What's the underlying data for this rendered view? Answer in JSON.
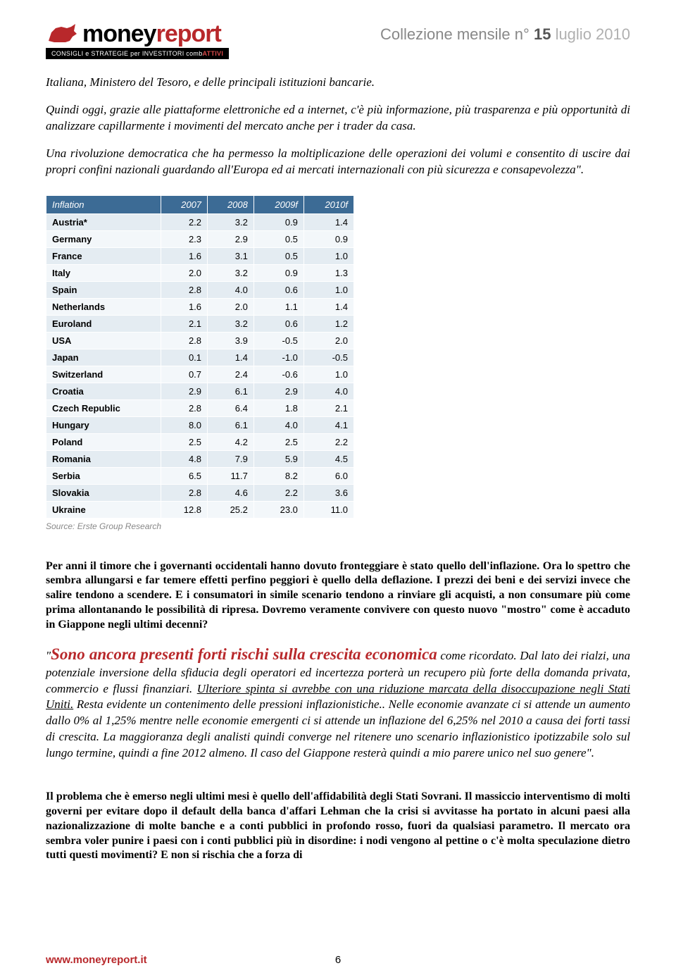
{
  "header": {
    "logo_text_1": "money",
    "logo_text_2": "report",
    "tagline_pre": "CONSIGLI e STRATEGIE per INVESTITORI comb",
    "tagline_red": "ATTIVI",
    "collezione_label": "Collezione mensile",
    "collezione_n": "n°",
    "collezione_num": "15",
    "collezione_month": "luglio 2010",
    "logo_color": "#b8282b"
  },
  "para1": "Italiana, Ministero del Tesoro, e delle principali istituzioni bancarie.",
  "para2": "Quindi oggi, grazie alle piattaforme elettroniche ed a internet, c'è più informazione, più trasparenza e più opportunità di analizzare capillarmente i movimenti del mercato anche per i trader da casa.",
  "para3": "Una rivoluzione democratica che ha permesso la moltiplicazione delle operazioni dei volumi e consentito di uscire dai propri confini nazionali guardando all'Europa ed ai mercati internazionali con più sicurezza e consapevolezza\".",
  "table": {
    "type": "table",
    "columns": [
      "Inflation",
      "2007",
      "2008",
      "2009f",
      "2010f"
    ],
    "rows": [
      [
        "Austria*",
        "2.2",
        "3.2",
        "0.9",
        "1.4"
      ],
      [
        "Germany",
        "2.3",
        "2.9",
        "0.5",
        "0.9"
      ],
      [
        "France",
        "1.6",
        "3.1",
        "0.5",
        "1.0"
      ],
      [
        "Italy",
        "2.0",
        "3.2",
        "0.9",
        "1.3"
      ],
      [
        "Spain",
        "2.8",
        "4.0",
        "0.6",
        "1.0"
      ],
      [
        "Netherlands",
        "1.6",
        "2.0",
        "1.1",
        "1.4"
      ],
      [
        "Euroland",
        "2.1",
        "3.2",
        "0.6",
        "1.2"
      ],
      [
        "USA",
        "2.8",
        "3.9",
        "-0.5",
        "2.0"
      ],
      [
        "Japan",
        "0.1",
        "1.4",
        "-1.0",
        "-0.5"
      ],
      [
        "Switzerland",
        "0.7",
        "2.4",
        "-0.6",
        "1.0"
      ],
      [
        "Croatia",
        "2.9",
        "6.1",
        "2.9",
        "4.0"
      ],
      [
        "Czech Republic",
        "2.8",
        "6.4",
        "1.8",
        "2.1"
      ],
      [
        "Hungary",
        "8.0",
        "6.1",
        "4.0",
        "4.1"
      ],
      [
        "Poland",
        "2.5",
        "4.2",
        "2.5",
        "2.2"
      ],
      [
        "Romania",
        "4.8",
        "7.9",
        "5.9",
        "4.5"
      ],
      [
        "Serbia",
        "6.5",
        "11.7",
        "8.2",
        "6.0"
      ],
      [
        "Slovakia",
        "2.8",
        "4.6",
        "2.2",
        "3.6"
      ],
      [
        "Ukraine",
        "12.8",
        "25.2",
        "23.0",
        "11.0"
      ]
    ],
    "source": "Source: Erste Group Research",
    "header_bg": "#3c6b95",
    "row_odd_bg": "#e4ecf2",
    "row_even_bg": "#f3f7fa",
    "font_size": 13
  },
  "para4": "Per anni il timore che i governanti occidentali hanno dovuto fronteggiare è stato quello dell'inflazione. Ora lo spettro che sembra allungarsi e far temere effetti perfino peggiori è quello della deflazione. I prezzi dei beni e dei servizi invece che salire tendono a scendere. E i consumatori in simile scenario tendono a rinviare gli acquisti, a non consumare più come prima allontanando le possibilità di ripresa. Dovremo veramente convivere con questo nuovo \"mostro\" come è accaduto in Giappone negli ultimi decenni?",
  "headline": {
    "quote": "\"",
    "red_text": "Sono ancora presenti forti rischi sulla crescita economica",
    "tail_1": " come ricordato. Dal lato dei rialzi, una potenziale inversione della sfiducia degli operatori ed incertezza porterà un recupero più forte della domanda privata, commercio e flussi finanziari. ",
    "underline": "Ulteriore spinta si avrebbe con una riduzione marcata della disoccupazione negli Stati Uniti.",
    "tail_2": " Resta evidente un contenimento delle pressioni inflazionistiche.. Nelle economie avanzate ci si attende un aumento dallo 0% al 1,25% mentre nelle economie emergenti ci si attende un inflazione del 6,25% nel 2010 a causa dei forti tassi di crescita. La maggioranza degli analisti quindi converge nel ritenere uno scenario inflazionistico ipotizzabile solo sul lungo termine, quindi a fine 2012 almeno. Il caso del Giappone resterà quindi a mio parere unico nel suo genere\"."
  },
  "para5": "Il problema che è emerso negli ultimi mesi è quello dell'affidabilità degli Stati Sovrani. Il massiccio interventismo di molti governi per evitare dopo il default della banca d'affari Lehman che la crisi si avvitasse ha portato in alcuni paesi alla nazionalizzazione di molte banche e a conti pubblici in profondo rosso, fuori da qualsiasi parametro. Il mercato ora sembra voler punire i paesi con i conti pubblici più in disordine: i nodi vengono al pettine o c'è molta speculazione dietro tutti questi movimenti? E non si rischia che a forza di",
  "footer": {
    "url": "www.moneyreport.it",
    "page": "6"
  }
}
